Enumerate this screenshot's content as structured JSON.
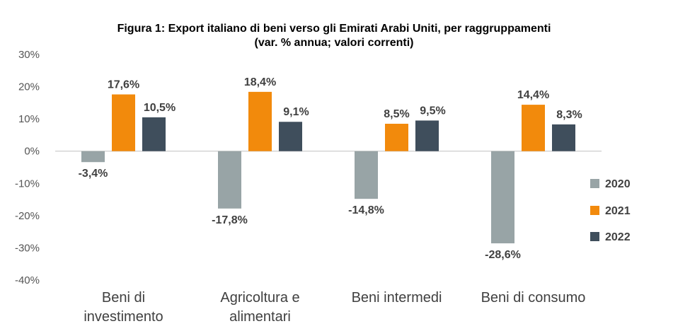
{
  "chart_data": {
    "type": "bar",
    "title": "Figura 1: Export italiano di beni verso gli Emirati Arabi Uniti, per raggruppamenti",
    "subtitle": "(var. % annua; valori correnti)",
    "categories": [
      [
        "Beni di",
        "investimento"
      ],
      [
        "Agricoltura e",
        "alimentari"
      ],
      [
        "Beni intermedi"
      ],
      [
        "Beni di consumo"
      ]
    ],
    "series": [
      {
        "name": "2020",
        "color": "#98A4A6",
        "values": [
          -3.4,
          -17.8,
          -14.8,
          -28.6
        ],
        "labels": [
          "-3,4%",
          "-17,8%",
          "-14,8%",
          "-28,6%"
        ]
      },
      {
        "name": "2021",
        "color": "#F28A0C",
        "values": [
          17.6,
          18.4,
          8.5,
          14.4
        ],
        "labels": [
          "17,6%",
          "18,4%",
          "8,5%",
          "14,4%"
        ]
      },
      {
        "name": "2022",
        "color": "#3F4E5C",
        "values": [
          10.5,
          9.1,
          9.5,
          8.3
        ],
        "labels": [
          "10,5%",
          "9,1%",
          "9,5%",
          "8,3%"
        ]
      }
    ],
    "ylim": [
      -40,
      30
    ],
    "yticks": [
      30,
      20,
      10,
      0,
      -10,
      -20,
      -30,
      -40
    ],
    "ytick_labels": [
      "30%",
      "20%",
      "10%",
      "0%",
      "-10%",
      "-20%",
      "-30%",
      "-40%"
    ],
    "legend_position": "right",
    "grid": false
  }
}
